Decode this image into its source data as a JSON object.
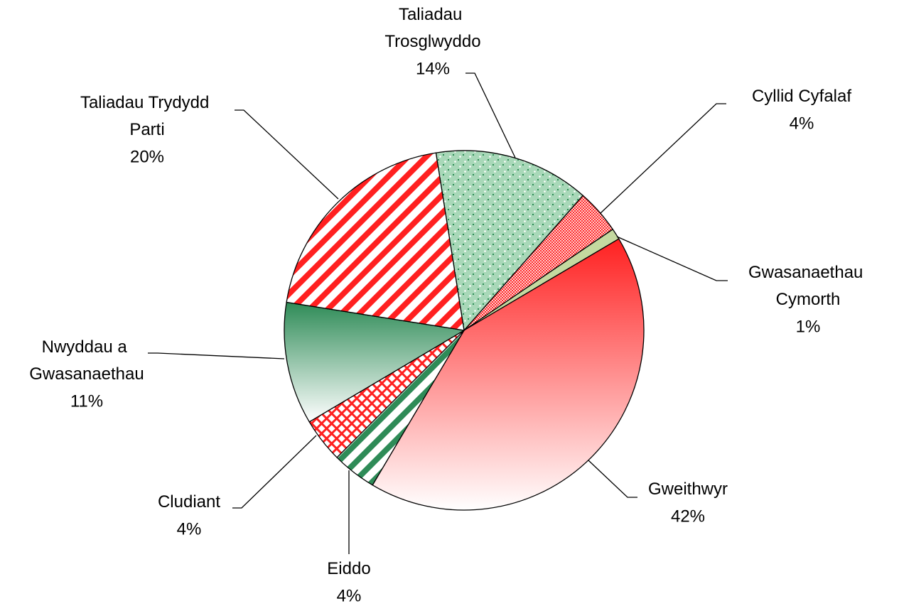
{
  "chart_data": {
    "type": "pie",
    "categories": [
      "Taliadau Trosglwyddo",
      "Cyllid Cyfalaf",
      "Gwasanaethau Cymorth",
      "Gweithwyr",
      "Eiddo",
      "Cludiant",
      "Nwyddau a Gwasanaethau",
      "Taliadau Trydydd Parti"
    ],
    "values": [
      14,
      4,
      1,
      42,
      4,
      4,
      11,
      20
    ],
    "value_labels": [
      "14%",
      "4%",
      "1%",
      "42%",
      "4%",
      "4%",
      "11%",
      "20%"
    ],
    "colors": [
      "#2e8b57",
      "#ff2a2a",
      "#c4d9a0",
      "#ff2020",
      "#2e8b57",
      "#ff2020",
      "#2e8b57",
      "#ff2020"
    ]
  }
}
